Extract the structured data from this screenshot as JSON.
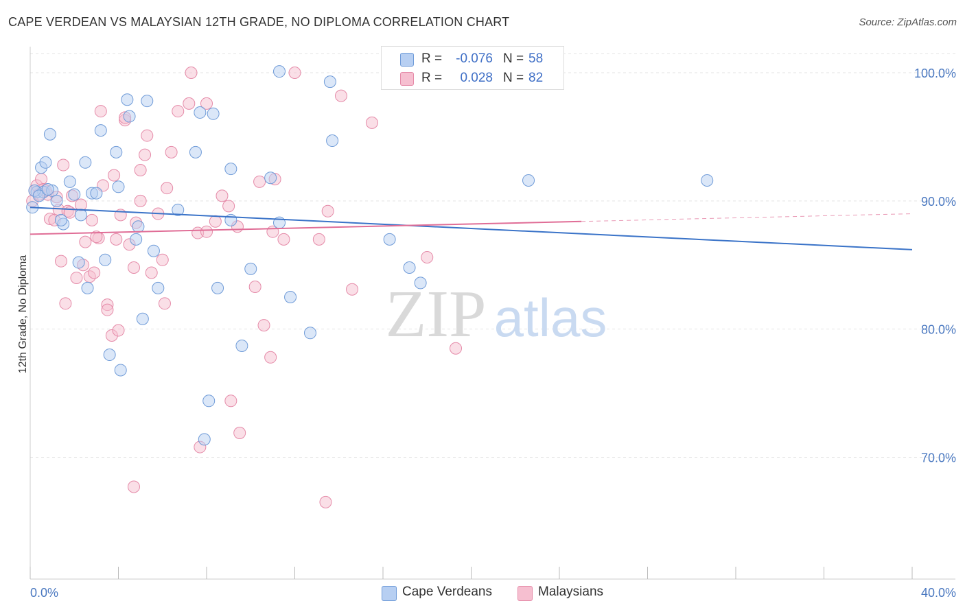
{
  "title": "CAPE VERDEAN VS MALAYSIAN 12TH GRADE, NO DIPLOMA CORRELATION CHART",
  "source": "Source: ZipAtlas.com",
  "watermark": {
    "zip": "ZIP",
    "atlas": "atlas"
  },
  "legend_top": {
    "rows": [
      {
        "r_label": "R =",
        "r_value": "-0.076",
        "n_label": "N =",
        "n_value": "58"
      },
      {
        "r_label": "R =",
        "r_value": "0.028",
        "n_label": "N =",
        "n_value": "82"
      }
    ]
  },
  "legend_bottom": {
    "items": [
      "Cape Verdeans",
      "Malaysians"
    ]
  },
  "colors": {
    "blue_fill": "#b7cff2",
    "blue_stroke": "#6f9bd8",
    "blue_line": "#3a73c8",
    "pink_fill": "#f6bfd0",
    "pink_stroke": "#e58aa8",
    "pink_line": "#e06d96"
  },
  "chart_data": {
    "type": "scatter",
    "title": "CAPE VERDEAN VS MALAYSIAN 12TH GRADE, NO DIPLOMA CORRELATION CHART",
    "xlabel": "",
    "ylabel": "12th Grade, No Diploma",
    "xlim": [
      0,
      40
    ],
    "ylim": [
      60.5,
      101.5
    ],
    "x_tick_labels": [
      "0.0%",
      "40.0%"
    ],
    "y_ticks": [
      70,
      80,
      90,
      100
    ],
    "y_tick_labels": [
      "70.0%",
      "80.0%",
      "90.0%",
      "100.0%"
    ],
    "grid": true,
    "legend_position": "top-center",
    "series": [
      {
        "name": "Cape Verdeans",
        "points": [
          [
            0.1,
            89.5
          ],
          [
            0.3,
            90.7
          ],
          [
            0.5,
            92.6
          ],
          [
            0.7,
            93.0
          ],
          [
            0.9,
            95.2
          ],
          [
            0.6,
            90.7
          ],
          [
            1.0,
            90.8
          ],
          [
            1.2,
            90.0
          ],
          [
            1.5,
            88.2
          ],
          [
            1.8,
            91.5
          ],
          [
            2.0,
            90.5
          ],
          [
            2.3,
            88.9
          ],
          [
            2.5,
            93.0
          ],
          [
            2.8,
            90.6
          ],
          [
            2.2,
            85.2
          ],
          [
            3.0,
            90.6
          ],
          [
            3.2,
            95.5
          ],
          [
            3.4,
            85.4
          ],
          [
            3.9,
            93.8
          ],
          [
            4.0,
            91.1
          ],
          [
            4.4,
            97.9
          ],
          [
            4.5,
            96.6
          ],
          [
            4.8,
            87.0
          ],
          [
            4.9,
            88.0
          ],
          [
            5.3,
            97.8
          ],
          [
            5.6,
            86.1
          ],
          [
            5.8,
            83.2
          ],
          [
            6.7,
            89.3
          ],
          [
            7.5,
            93.8
          ],
          [
            7.7,
            96.9
          ],
          [
            8.3,
            96.8
          ],
          [
            8.5,
            83.2
          ],
          [
            9.1,
            92.5
          ],
          [
            9.1,
            88.5
          ],
          [
            9.6,
            78.7
          ],
          [
            10.0,
            84.7
          ],
          [
            10.9,
            91.8
          ],
          [
            11.3,
            88.3
          ],
          [
            11.3,
            100.1
          ],
          [
            11.8,
            82.5
          ],
          [
            12.7,
            79.7
          ],
          [
            13.6,
            99.3
          ],
          [
            13.7,
            94.7
          ],
          [
            16.3,
            87.0
          ],
          [
            17.2,
            84.8
          ],
          [
            17.7,
            83.6
          ],
          [
            2.6,
            83.2
          ],
          [
            3.6,
            78.0
          ],
          [
            4.1,
            76.8
          ],
          [
            5.1,
            80.8
          ],
          [
            8.1,
            74.4
          ],
          [
            7.9,
            71.4
          ],
          [
            22.6,
            91.6
          ],
          [
            30.7,
            91.6
          ],
          [
            0.2,
            90.8
          ],
          [
            0.4,
            90.4
          ],
          [
            1.4,
            88.5
          ],
          [
            0.8,
            90.9
          ]
        ]
      },
      {
        "name": "Malaysians",
        "points": [
          [
            0.1,
            90.0
          ],
          [
            0.2,
            90.8
          ],
          [
            0.3,
            91.2
          ],
          [
            0.4,
            90.5
          ],
          [
            0.5,
            91.7
          ],
          [
            0.6,
            90.9
          ],
          [
            0.8,
            90.5
          ],
          [
            0.9,
            88.6
          ],
          [
            1.1,
            88.5
          ],
          [
            1.3,
            89.3
          ],
          [
            1.5,
            92.8
          ],
          [
            1.7,
            89.2
          ],
          [
            1.9,
            90.4
          ],
          [
            1.4,
            85.3
          ],
          [
            1.6,
            82.0
          ],
          [
            2.1,
            84.0
          ],
          [
            2.3,
            89.7
          ],
          [
            2.5,
            86.8
          ],
          [
            2.7,
            84.1
          ],
          [
            2.9,
            84.4
          ],
          [
            3.1,
            87.1
          ],
          [
            3.3,
            91.2
          ],
          [
            3.5,
            81.9
          ],
          [
            3.7,
            79.5
          ],
          [
            3.9,
            87.0
          ],
          [
            4.1,
            88.9
          ],
          [
            4.3,
            96.3
          ],
          [
            4.5,
            86.6
          ],
          [
            4.8,
            88.3
          ],
          [
            5.0,
            90.0
          ],
          [
            5.2,
            93.6
          ],
          [
            5.5,
            84.4
          ],
          [
            5.8,
            89.0
          ],
          [
            6.1,
            82.0
          ],
          [
            6.4,
            93.8
          ],
          [
            6.7,
            97.0
          ],
          [
            7.2,
            97.6
          ],
          [
            7.6,
            87.5
          ],
          [
            8.0,
            97.6
          ],
          [
            8.4,
            88.4
          ],
          [
            8.7,
            90.4
          ],
          [
            9.0,
            89.6
          ],
          [
            9.4,
            88.0
          ],
          [
            10.2,
            83.3
          ],
          [
            10.6,
            80.3
          ],
          [
            10.9,
            77.8
          ],
          [
            11.5,
            87.0
          ],
          [
            12.0,
            100.0
          ],
          [
            13.1,
            87.0
          ],
          [
            13.5,
            89.2
          ],
          [
            14.1,
            98.2
          ],
          [
            14.6,
            83.1
          ],
          [
            15.5,
            96.1
          ],
          [
            16.3,
            100.0
          ],
          [
            18.0,
            85.6
          ],
          [
            19.3,
            78.5
          ],
          [
            2.4,
            85.0
          ],
          [
            3.5,
            81.5
          ],
          [
            4.0,
            79.9
          ],
          [
            4.7,
            84.8
          ],
          [
            5.0,
            92.4
          ],
          [
            5.3,
            95.1
          ],
          [
            6.0,
            85.4
          ],
          [
            7.3,
            100.0
          ],
          [
            8.0,
            87.6
          ],
          [
            9.5,
            71.9
          ],
          [
            9.1,
            74.4
          ],
          [
            7.7,
            70.8
          ],
          [
            4.7,
            67.7
          ],
          [
            13.4,
            66.5
          ],
          [
            11.1,
            91.7
          ],
          [
            10.4,
            91.5
          ],
          [
            3.2,
            97.0
          ],
          [
            1.8,
            89.1
          ],
          [
            2.8,
            88.5
          ],
          [
            4.3,
            96.5
          ],
          [
            6.2,
            91.0
          ],
          [
            0.7,
            90.8
          ],
          [
            1.2,
            90.3
          ],
          [
            3.0,
            87.2
          ],
          [
            11.0,
            87.6
          ],
          [
            3.8,
            92.0
          ]
        ]
      }
    ],
    "trend_lines": [
      {
        "name": "Cape Verdeans",
        "x": [
          0,
          40
        ],
        "y": [
          89.5,
          86.2
        ]
      },
      {
        "name": "Malaysians",
        "x": [
          0,
          25,
          40
        ],
        "y": [
          87.4,
          88.4,
          89.0
        ]
      }
    ]
  }
}
